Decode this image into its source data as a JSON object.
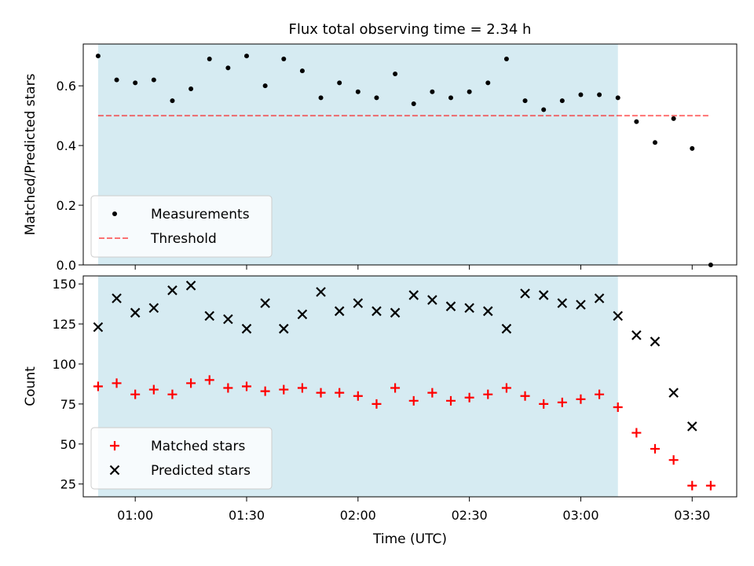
{
  "title": "Flux total observing time = 2.34 h",
  "colors": {
    "shade": "#add8e6",
    "measurement": "#000000",
    "threshold": "#ff0000",
    "matched": "#ff0000",
    "predicted": "#000000"
  },
  "chart_data": [
    {
      "type": "scatter",
      "ylabel": "Matched/Predicted stars",
      "xlabel": "",
      "xlim": [
        "00:46",
        "03:42"
      ],
      "ylim": [
        0,
        0.74
      ],
      "yticks": [
        0.0,
        0.2,
        0.4,
        0.6
      ],
      "ytick_labels": [
        "0.0",
        "0.2",
        "0.4",
        "0.6"
      ],
      "shaded_interval": [
        "00:50",
        "03:10"
      ],
      "legend_location": "lower-left",
      "threshold": {
        "name": "Threshold",
        "y": 0.5,
        "x": [
          "00:50",
          "03:35"
        ],
        "style": "dashed"
      },
      "series": [
        {
          "name": "Measurements",
          "marker": "dot",
          "x": [
            "00:50",
            "00:55",
            "01:00",
            "01:05",
            "01:10",
            "01:15",
            "01:20",
            "01:25",
            "01:30",
            "01:35",
            "01:40",
            "01:45",
            "01:50",
            "01:55",
            "02:00",
            "02:05",
            "02:10",
            "02:15",
            "02:20",
            "02:25",
            "02:30",
            "02:35",
            "02:40",
            "02:45",
            "02:50",
            "02:55",
            "03:00",
            "03:05",
            "03:10",
            "03:15",
            "03:20",
            "03:25",
            "03:30",
            "03:35"
          ],
          "y": [
            0.7,
            0.62,
            0.61,
            0.62,
            0.55,
            0.59,
            0.69,
            0.66,
            0.7,
            0.6,
            0.69,
            0.65,
            0.56,
            0.61,
            0.58,
            0.56,
            0.64,
            0.54,
            0.58,
            0.56,
            0.58,
            0.61,
            0.69,
            0.55,
            0.52,
            0.55,
            0.57,
            0.57,
            0.56,
            0.48,
            0.41,
            0.49,
            0.39,
            0.0
          ]
        }
      ]
    },
    {
      "type": "scatter",
      "ylabel": "Count",
      "xlabel": "Time (UTC)",
      "xlim": [
        "00:46",
        "03:42"
      ],
      "ylim": [
        17,
        155
      ],
      "yticks": [
        25,
        50,
        75,
        100,
        125,
        150
      ],
      "ytick_labels": [
        "25",
        "50",
        "75",
        "100",
        "125",
        "150"
      ],
      "xticks": [
        "01:00",
        "01:30",
        "02:00",
        "02:30",
        "03:00",
        "03:30"
      ],
      "xtick_labels": [
        "01:00",
        "01:30",
        "02:00",
        "02:30",
        "03:00",
        "03:30"
      ],
      "shaded_interval": [
        "00:50",
        "03:10"
      ],
      "legend_location": "lower-left",
      "series": [
        {
          "name": "Matched stars",
          "marker": "plus",
          "x": [
            "00:50",
            "00:55",
            "01:00",
            "01:05",
            "01:10",
            "01:15",
            "01:20",
            "01:25",
            "01:30",
            "01:35",
            "01:40",
            "01:45",
            "01:50",
            "01:55",
            "02:00",
            "02:05",
            "02:10",
            "02:15",
            "02:20",
            "02:25",
            "02:30",
            "02:35",
            "02:40",
            "02:45",
            "02:50",
            "02:55",
            "03:00",
            "03:05",
            "03:10",
            "03:15",
            "03:20",
            "03:25",
            "03:30",
            "03:35"
          ],
          "y": [
            86,
            88,
            81,
            84,
            81,
            88,
            90,
            85,
            86,
            83,
            84,
            85,
            82,
            82,
            80,
            75,
            85,
            77,
            82,
            77,
            79,
            81,
            85,
            80,
            75,
            76,
            78,
            81,
            73,
            57,
            47,
            40,
            24,
            24
          ]
        },
        {
          "name": "Predicted stars",
          "marker": "x",
          "x": [
            "00:50",
            "00:55",
            "01:00",
            "01:05",
            "01:10",
            "01:15",
            "01:20",
            "01:25",
            "01:30",
            "01:35",
            "01:40",
            "01:45",
            "01:50",
            "01:55",
            "02:00",
            "02:05",
            "02:10",
            "02:15",
            "02:20",
            "02:25",
            "02:30",
            "02:35",
            "02:40",
            "02:45",
            "02:50",
            "02:55",
            "03:00",
            "03:05",
            "03:10",
            "03:15",
            "03:20",
            "03:25",
            "03:30"
          ],
          "y": [
            123,
            141,
            132,
            135,
            146,
            149,
            130,
            128,
            122,
            138,
            122,
            131,
            145,
            133,
            138,
            133,
            132,
            143,
            140,
            136,
            135,
            133,
            122,
            144,
            143,
            138,
            137,
            141,
            130,
            118,
            114,
            82,
            61
          ]
        }
      ]
    }
  ]
}
